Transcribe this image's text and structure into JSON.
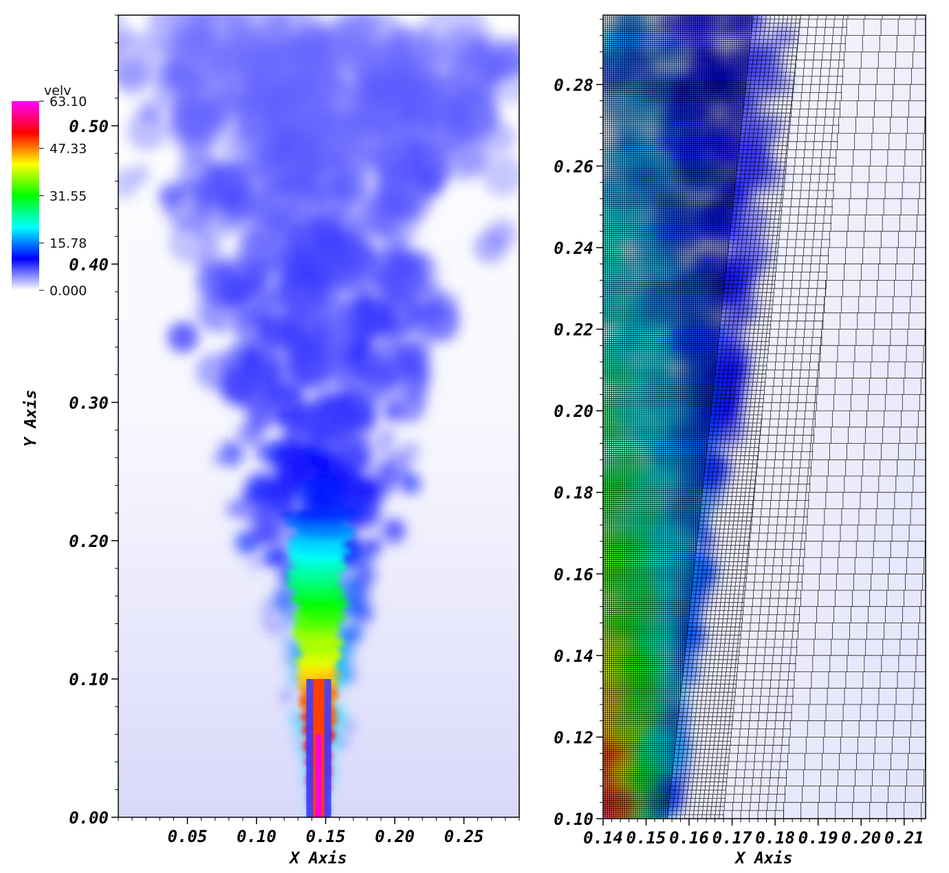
{
  "colorbar": {
    "title": "velv",
    "labels": [
      "63.10",
      "47.33",
      "31.55",
      "15.78",
      "0.000"
    ],
    "values": [
      63.1,
      47.33,
      31.55,
      15.78,
      0.0
    ],
    "min": 0.0,
    "max": 63.1,
    "colors": [
      "#ffffff",
      "#0000ff",
      "#00ffff",
      "#00ff00",
      "#ffff00",
      "#ff0000",
      "#ff00ff"
    ]
  },
  "chart_data": [
    {
      "type": "heatmap",
      "field": "velv",
      "xlabel": "X Axis",
      "ylabel": "Y Axis",
      "xlim": [
        0.0,
        0.29
      ],
      "ylim": [
        0.0,
        0.58
      ],
      "x_ticks": [
        "0.05",
        "0.10",
        "0.15",
        "0.20",
        "0.25"
      ],
      "x_tick_values": [
        0.05,
        0.1,
        0.15,
        0.2,
        0.25
      ],
      "y_ticks": [
        "0.00",
        "0.10",
        "0.20",
        "0.30",
        "0.40",
        "0.50"
      ],
      "y_tick_values": [
        0.0,
        0.1,
        0.2,
        0.3,
        0.4,
        0.5
      ],
      "jet_center_x": 0.145,
      "jet_core_peak": 63.1
    },
    {
      "type": "heatmap",
      "field": "velv",
      "xlabel": "X Axis",
      "ylabel": "",
      "xlim": [
        0.14,
        0.215
      ],
      "ylim": [
        0.1,
        0.297
      ],
      "x_ticks": [
        "0.14",
        "0.15",
        "0.16",
        "0.17",
        "0.18",
        "0.19",
        "0.20",
        "0.21"
      ],
      "x_tick_values": [
        0.14,
        0.15,
        0.16,
        0.17,
        0.18,
        0.19,
        0.2,
        0.21
      ],
      "y_ticks": [
        "0.10",
        "0.12",
        "0.14",
        "0.16",
        "0.18",
        "0.20",
        "0.22",
        "0.24",
        "0.26",
        "0.28"
      ],
      "y_tick_values": [
        0.1,
        0.12,
        0.14,
        0.16,
        0.18,
        0.2,
        0.22,
        0.24,
        0.26,
        0.28
      ],
      "mesh_overlay": true,
      "jet_center_x": 0.145
    }
  ]
}
